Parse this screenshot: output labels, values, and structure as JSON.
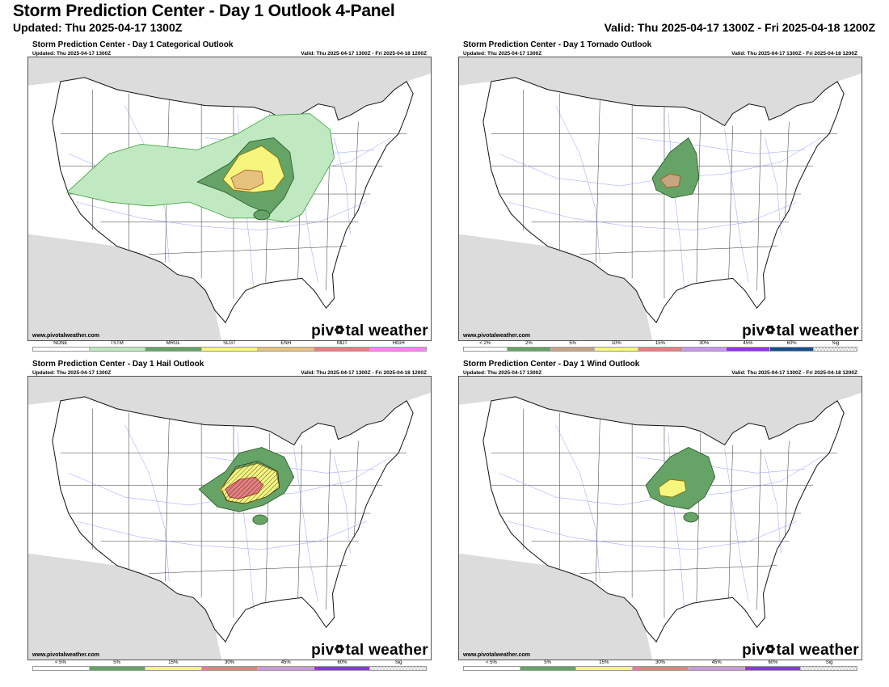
{
  "header": {
    "title": "Storm Prediction Center - Day 1 Outlook 4-Panel",
    "updated": "Updated: Thu 2025-04-17 1300Z",
    "valid": "Valid: Thu 2025-04-17 1300Z - Fri 2025-04-18 1200Z"
  },
  "panels": [
    {
      "title": "Storm Prediction Center - Day 1 Categorical Outlook",
      "updated": "Updated: Thu 2025-04-17 1300Z",
      "valid": "Valid: Thu 2025-04-17 1300Z - Fri 2025-04-18 1200Z",
      "website": "www.pivotalweather.com",
      "brand": "piv tal weather",
      "legend": [
        {
          "label": "NONE",
          "color": "#ffffff"
        },
        {
          "label": "TSTM",
          "color": "#c1e9c1"
        },
        {
          "label": "MRGL",
          "color": "#66a366"
        },
        {
          "label": "SLGT",
          "color": "#f6f67f"
        },
        {
          "label": "ENH",
          "color": "#e6c27f"
        },
        {
          "label": "MDT",
          "color": "#e67f7f"
        },
        {
          "label": "HIGH",
          "color": "#ff80ff"
        }
      ]
    },
    {
      "title": "Storm Prediction Center - Day 1 Tornado Outlook",
      "updated": "Updated: Thu 2025-04-17 1300Z",
      "valid": "Valid: Thu 2025-04-17 1300Z - Fri 2025-04-18 1200Z",
      "website": "www.pivotalweather.com",
      "brand": "piv tal weather",
      "legend": [
        {
          "label": "< 2%",
          "color": "#ffffff"
        },
        {
          "label": "2%",
          "color": "#66a366"
        },
        {
          "label": "5%",
          "color": "#c8a582"
        },
        {
          "label": "10%",
          "color": "#f6f67f"
        },
        {
          "label": "15%",
          "color": "#e67f7f"
        },
        {
          "label": "30%",
          "color": "#c896f0"
        },
        {
          "label": "45%",
          "color": "#9632e6"
        },
        {
          "label": "60%",
          "color": "#14508c"
        },
        {
          "label": "Sig",
          "color": "hatch"
        }
      ]
    },
    {
      "title": "Storm Prediction Center - Day 1 Hail Outlook",
      "updated": "Updated: Thu 2025-04-17 1300Z",
      "valid": "Valid: Thu 2025-04-17 1300Z - Fri 2025-04-18 1200Z",
      "website": "www.pivotalweather.com",
      "brand": "piv tal weather",
      "legend": [
        {
          "label": "< 5%",
          "color": "#ffffff"
        },
        {
          "label": "5%",
          "color": "#66a366"
        },
        {
          "label": "15%",
          "color": "#f6f67f"
        },
        {
          "label": "30%",
          "color": "#e67f7f"
        },
        {
          "label": "45%",
          "color": "#c896f0"
        },
        {
          "label": "60%",
          "color": "#9632e6"
        },
        {
          "label": "Sig",
          "color": "hatch"
        }
      ]
    },
    {
      "title": "Storm Prediction Center - Day 1 Wind Outlook",
      "updated": "Updated: Thu 2025-04-17 1300Z",
      "valid": "Valid: Thu 2025-04-17 1300Z - Fri 2025-04-18 1200Z",
      "website": "www.pivotalweather.com",
      "brand": "piv tal weather",
      "legend": [
        {
          "label": "< 5%",
          "color": "#ffffff"
        },
        {
          "label": "5%",
          "color": "#66a366"
        },
        {
          "label": "15%",
          "color": "#f6f67f"
        },
        {
          "label": "30%",
          "color": "#e67f7f"
        },
        {
          "label": "45%",
          "color": "#c896f0"
        },
        {
          "label": "60%",
          "color": "#9632e6"
        },
        {
          "label": "Sig",
          "color": "hatch"
        }
      ]
    }
  ]
}
